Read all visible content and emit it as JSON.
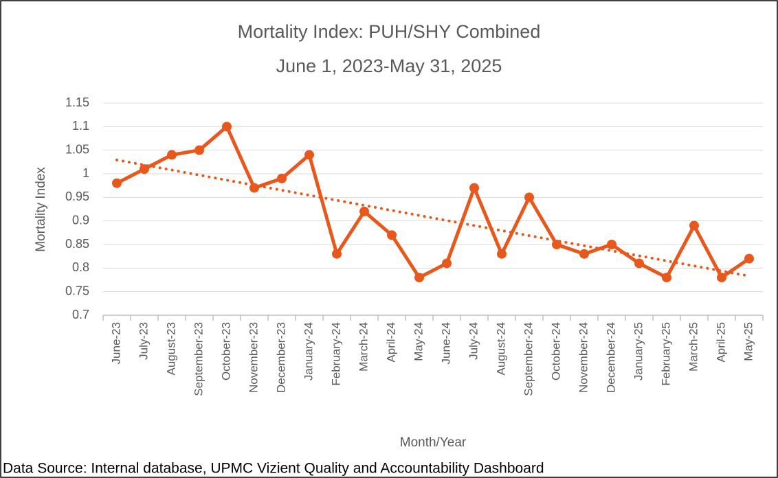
{
  "chart_data": {
    "type": "line",
    "title": "Mortality Index: PUH/SHY Combined",
    "subtitle": "June 1, 2023-May 31, 2025",
    "x_label": "Month/Year",
    "y_label": "Mortality Index",
    "footer": "Data Source: Internal database, UPMC Vizient Quality and Accountability Dashboard",
    "categories": [
      "June-23",
      "July-23",
      "August-23",
      "September-23",
      "October-23",
      "November-23",
      "December-23",
      "January-24",
      "February-24",
      "March-24",
      "April-24",
      "May-24",
      "June-24",
      "July-24",
      "August-24",
      "September-24",
      "October-24",
      "November-24",
      "December-24",
      "January-25",
      "February-25",
      "March-25",
      "April-25",
      "May-25"
    ],
    "series": [
      {
        "name": "Mortality Index",
        "color": "#e8581c",
        "values": [
          0.98,
          1.01,
          1.04,
          1.05,
          1.1,
          0.97,
          0.99,
          1.04,
          0.83,
          0.92,
          0.87,
          0.78,
          0.81,
          0.97,
          0.83,
          0.95,
          0.85,
          0.83,
          0.85,
          0.81,
          0.78,
          0.89,
          0.78,
          0.82
        ]
      }
    ],
    "trendline": "linear",
    "ylim": [
      0.7,
      1.15
    ],
    "yticks": [
      0.7,
      0.75,
      0.8,
      0.85,
      0.9,
      0.95,
      1,
      1.05,
      1.1,
      1.15
    ],
    "grid": true
  }
}
